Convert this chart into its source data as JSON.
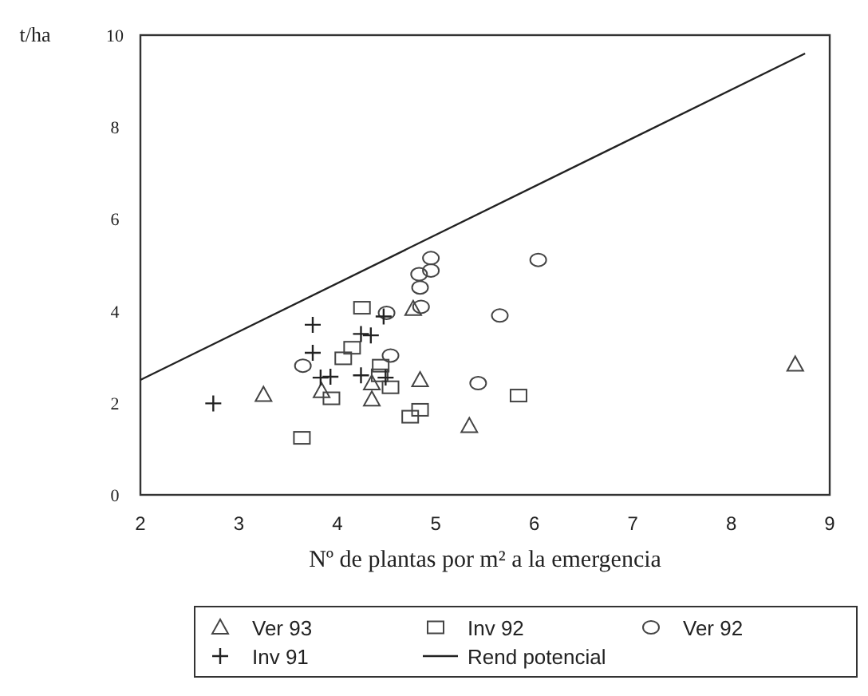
{
  "chart_data": {
    "type": "scatter",
    "ylabel": "t/ha",
    "xlabel": "Nº de plantas por m² a la emergencia",
    "xlim": [
      2,
      9
    ],
    "ylim": [
      0,
      10
    ],
    "xticks": [
      2,
      3,
      4,
      5,
      6,
      7,
      8,
      9
    ],
    "yticks": [
      0,
      2,
      4,
      6,
      8,
      10
    ],
    "grid": false,
    "legend": "bottom",
    "series": [
      {
        "name": "Ver 93",
        "color": "#444444",
        "marker": "triangle",
        "x": [
          3.25,
          3.84,
          4.35,
          4.35,
          4.77,
          4.84,
          5.34,
          8.65
        ],
        "values": [
          2.18,
          2.26,
          2.08,
          2.43,
          4.05,
          2.5,
          1.5,
          2.84
        ]
      },
      {
        "name": "Inv 92",
        "color": "#444444",
        "marker": "square",
        "x": [
          4.25,
          4.15,
          4.06,
          4.44,
          4.43,
          4.54,
          3.94,
          4.84,
          4.74,
          3.64,
          5.84
        ],
        "values": [
          4.07,
          3.2,
          2.97,
          2.81,
          2.6,
          2.34,
          2.1,
          1.85,
          1.7,
          1.24,
          2.16
        ]
      },
      {
        "name": "Ver 92",
        "color": "#444444",
        "marker": "circle",
        "x": [
          3.65,
          4.5,
          4.54,
          4.85,
          4.84,
          4.83,
          4.95,
          4.95,
          5.65,
          5.43,
          6.04
        ],
        "values": [
          2.81,
          3.96,
          3.03,
          4.09,
          4.51,
          4.8,
          4.88,
          5.15,
          3.9,
          2.43,
          5.11
        ]
      },
      {
        "name": "Inv 91",
        "color": "#222222",
        "marker": "cross",
        "x": [
          2.74,
          3.75,
          3.75,
          3.83,
          3.93,
          4.24,
          4.34,
          4.24,
          4.49,
          4.47
        ],
        "values": [
          1.99,
          3.7,
          3.09,
          2.55,
          2.57,
          3.5,
          3.47,
          2.6,
          2.55,
          3.88
        ]
      },
      {
        "name": "Rend potencial",
        "type": "line",
        "color": "#222222",
        "marker": "none",
        "line_style": "solid",
        "x": [
          2,
          8.75
        ],
        "values": [
          2.5,
          9.6
        ]
      }
    ]
  }
}
